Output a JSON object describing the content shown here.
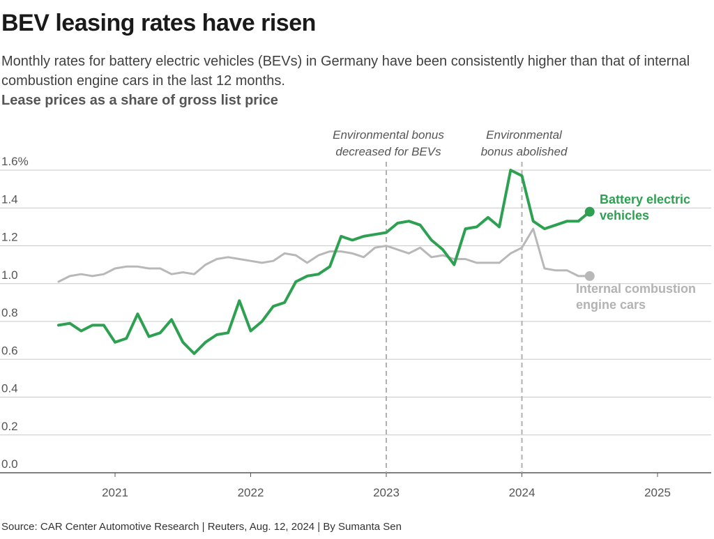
{
  "header": {
    "title": "BEV leasing rates have risen",
    "subtitle": "Monthly rates for battery electric vehicles (BEVs) in Germany have been consistently higher than that of internal combustion engine cars in the last 12 months.",
    "axis_title": "Lease prices as a share of gross list price"
  },
  "footer": {
    "source": "Source: CAR Center Automotive Research | Reuters, Aug. 12, 2024 | By Sumanta Sen"
  },
  "colors": {
    "bev": "#2ea052",
    "ice": "#b8b8b8",
    "grid": "#c8c8c8",
    "annotation_line": "#b0b0b0"
  },
  "chart_data": {
    "type": "line",
    "title": "BEV leasing rates have risen",
    "ylabel": "Lease prices as a share of gross list price",
    "xlabel": "",
    "ylim": [
      0,
      1.6
    ],
    "y_ticks": [
      "0.0",
      "0.2",
      "0.4",
      "0.6",
      "0.8",
      "1.0",
      "1.2",
      "1.4",
      "1.6%"
    ],
    "y_tick_values": [
      0,
      0.2,
      0.4,
      0.6,
      0.8,
      1.0,
      1.2,
      1.4,
      1.6
    ],
    "x_ticks": [
      "2021",
      "2022",
      "2023",
      "2024",
      "2025"
    ],
    "x_range": [
      "2020-06",
      "2025-10"
    ],
    "grid": true,
    "x": [
      "2020-08",
      "2020-09",
      "2020-10",
      "2020-11",
      "2020-12",
      "2021-01",
      "2021-02",
      "2021-03",
      "2021-04",
      "2021-05",
      "2021-06",
      "2021-07",
      "2021-08",
      "2021-09",
      "2021-10",
      "2021-11",
      "2021-12",
      "2022-01",
      "2022-02",
      "2022-03",
      "2022-04",
      "2022-05",
      "2022-06",
      "2022-07",
      "2022-08",
      "2022-09",
      "2022-10",
      "2022-11",
      "2022-12",
      "2023-01",
      "2023-02",
      "2023-03",
      "2023-04",
      "2023-05",
      "2023-06",
      "2023-07",
      "2023-08",
      "2023-09",
      "2023-10",
      "2023-11",
      "2023-12",
      "2024-01",
      "2024-02",
      "2024-03",
      "2024-04",
      "2024-05",
      "2024-06",
      "2024-07"
    ],
    "series": [
      {
        "name": "Battery electric vehicles",
        "label_lines": [
          "Battery electric",
          "vehicles"
        ],
        "color": "#2ea052",
        "values": [
          0.78,
          0.79,
          0.75,
          0.78,
          0.78,
          0.69,
          0.71,
          0.84,
          0.72,
          0.74,
          0.81,
          0.69,
          0.63,
          0.69,
          0.73,
          0.74,
          0.91,
          0.75,
          0.8,
          0.88,
          0.9,
          1.01,
          1.04,
          1.05,
          1.09,
          1.25,
          1.23,
          1.25,
          1.26,
          1.27,
          1.32,
          1.33,
          1.31,
          1.23,
          1.18,
          1.1,
          1.29,
          1.3,
          1.35,
          1.3,
          1.6,
          1.57,
          1.33,
          1.29,
          1.31,
          1.33,
          1.33,
          1.38
        ]
      },
      {
        "name": "Internal combustion engine cars",
        "label_lines": [
          "Internal combustion",
          "engine cars"
        ],
        "color": "#b8b8b8",
        "values": [
          1.01,
          1.04,
          1.05,
          1.04,
          1.05,
          1.08,
          1.09,
          1.09,
          1.08,
          1.08,
          1.05,
          1.06,
          1.05,
          1.1,
          1.13,
          1.14,
          1.13,
          1.12,
          1.11,
          1.12,
          1.16,
          1.15,
          1.11,
          1.15,
          1.17,
          1.17,
          1.16,
          1.14,
          1.19,
          1.2,
          1.18,
          1.16,
          1.19,
          1.14,
          1.15,
          1.13,
          1.13,
          1.11,
          1.11,
          1.11,
          1.16,
          1.19,
          1.29,
          1.08,
          1.07,
          1.07,
          1.04,
          1.04
        ]
      }
    ],
    "annotations": [
      {
        "x": "2023-01",
        "lines": [
          "Environmental bonus",
          "decreased for BEVs"
        ]
      },
      {
        "x": "2024-01",
        "lines": [
          "Environmental",
          "bonus abolished"
        ]
      }
    ]
  }
}
